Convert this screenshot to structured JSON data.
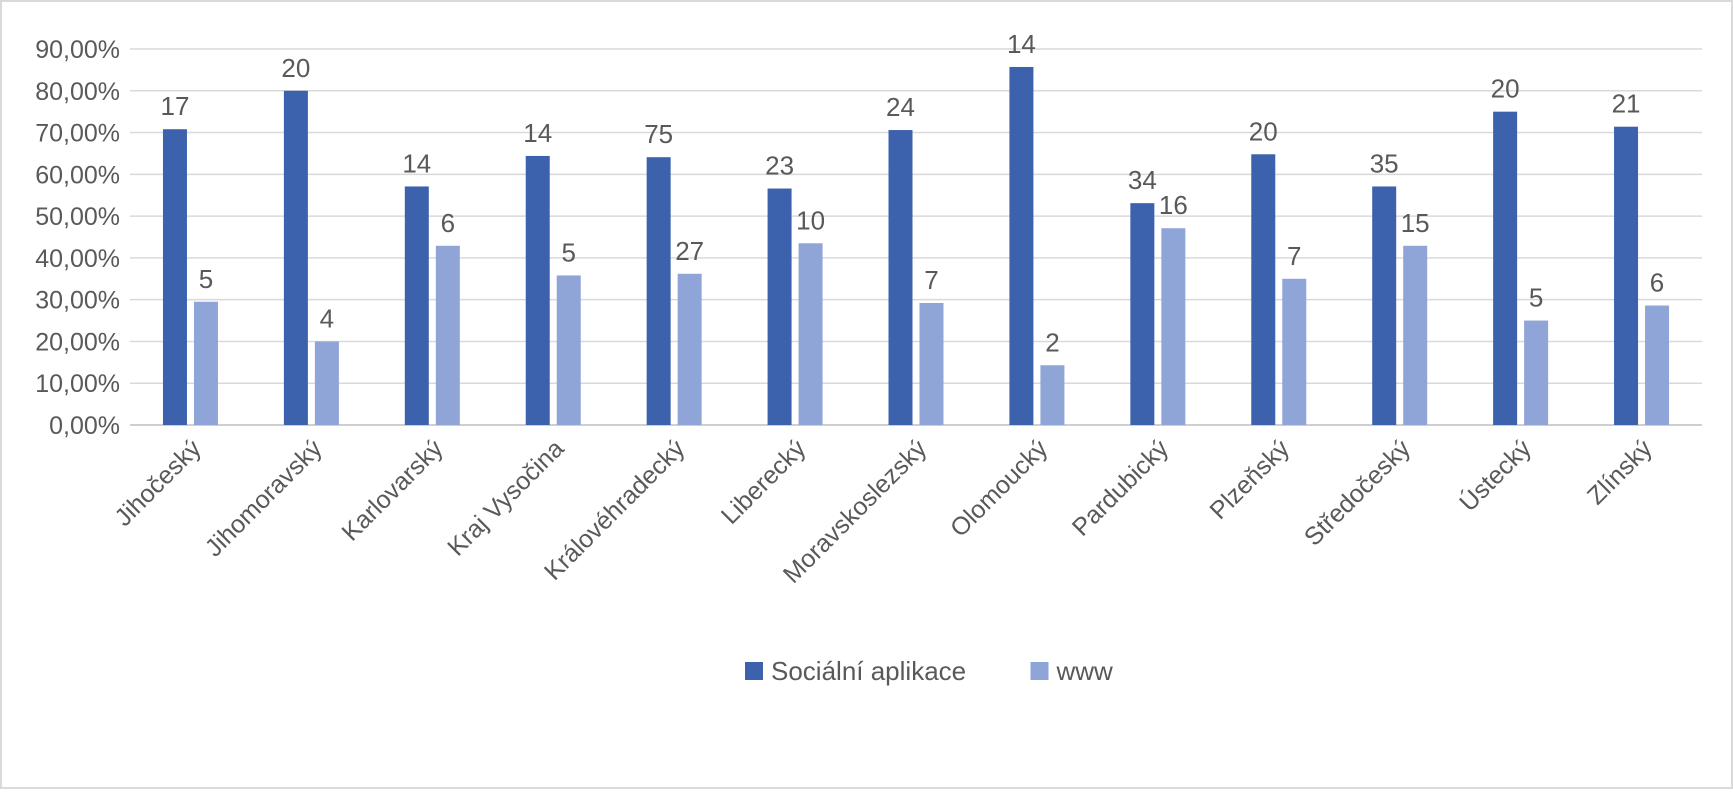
{
  "chart_data": {
    "type": "bar",
    "title": "",
    "xlabel": "",
    "ylabel": "",
    "ylim": [
      0,
      90
    ],
    "y_tick_step": 10,
    "y_tick_labels": [
      "0,00%",
      "10,00%",
      "20,00%",
      "30,00%",
      "40,00%",
      "50,00%",
      "60,00%",
      "70,00%",
      "80,00%",
      "90,00%"
    ],
    "grid": true,
    "legend_position": "bottom",
    "categories": [
      "Jihočeský",
      "Jihomoravský",
      "Karlovarský",
      "Kraj Vysočina",
      "Královéhradecký",
      "Liberecký",
      "Moravskoslezský",
      "Olomoucký",
      "Pardubický",
      "Plzeňský",
      "Středočeský",
      "Ústecký",
      "Zlínský"
    ],
    "series": [
      {
        "name": "Sociální aplikace",
        "color": "#3c62ad",
        "values": [
          70.8,
          80.0,
          57.1,
          64.4,
          64.1,
          56.6,
          70.6,
          85.7,
          53.1,
          64.8,
          57.1,
          75.0,
          71.4
        ],
        "labels": [
          "17",
          "20",
          "14",
          "14",
          "75",
          "23",
          "24",
          "14",
          "34",
          "20",
          "35",
          "20",
          "21"
        ]
      },
      {
        "name": "www",
        "color": "#8fa4d7",
        "values": [
          29.5,
          20.0,
          42.9,
          35.8,
          36.2,
          43.5,
          29.2,
          14.3,
          47.1,
          35.0,
          42.9,
          25.0,
          28.6
        ],
        "labels": [
          "5",
          "4",
          "6",
          "5",
          "27",
          "10",
          "7",
          "2",
          "16",
          "7",
          "15",
          "5",
          "6"
        ]
      }
    ]
  }
}
